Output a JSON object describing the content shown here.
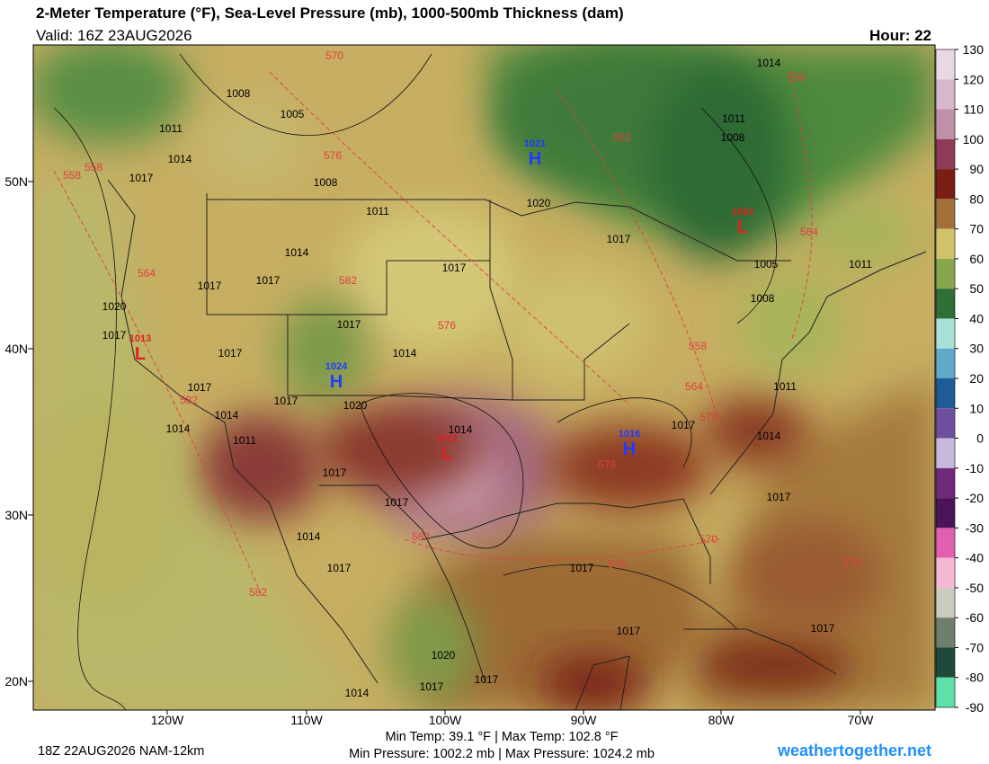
{
  "header": {
    "title": "2-Meter Temperature (°F), Sea-Level Pressure (mb), 1000-500mb Thickness (dam)",
    "valid": "Valid: 16Z 23AUG2026",
    "hour": "Hour: 22"
  },
  "colorbar": {
    "ticks": [
      130,
      120,
      110,
      100,
      90,
      80,
      70,
      60,
      50,
      40,
      30,
      20,
      10,
      0,
      -10,
      -20,
      -30,
      -40,
      -50,
      -60,
      -70,
      -80,
      -90
    ],
    "colors": [
      "#e8d8e3",
      "#d6b8cb",
      "#bf90a8",
      "#8e3b55",
      "#7a1d14",
      "#a4703a",
      "#cfc26a",
      "#86a74b",
      "#2f6e37",
      "#a9e0d6",
      "#5fa8c8",
      "#1f5a99",
      "#6e4f9e",
      "#c9b8de",
      "#6f2a7a",
      "#4b1456",
      "#e05fb1",
      "#f4b8d2",
      "#cbcbc0",
      "#6f7f6e",
      "#1f4a3a",
      "#5fe0a8"
    ]
  },
  "latitude_labels": [
    "50N",
    "40N",
    "30N",
    "20N"
  ],
  "longitude_labels": [
    "120W",
    "110W",
    "100W",
    "90W",
    "80W",
    "70W"
  ],
  "isobar_labels": [
    "1008",
    "1005",
    "1011",
    "1014",
    "1017",
    "1008",
    "1011",
    "1014",
    "1017",
    "1017",
    "1017",
    "1020",
    "1017",
    "1017",
    "1017",
    "1014",
    "1017",
    "1017",
    "1020",
    "1014",
    "1014",
    "1011",
    "1014",
    "1017",
    "1017",
    "1014",
    "1017",
    "1017",
    "1017",
    "1020",
    "1017",
    "1017",
    "1014",
    "1017",
    "1014",
    "1017",
    "1017",
    "1020",
    "1017",
    "1005",
    "1008",
    "1011",
    "1011",
    "1014",
    "1011",
    "1008"
  ],
  "thickness_labels": [
    "570",
    "576",
    "558",
    "558",
    "552",
    "558",
    "564",
    "582",
    "576",
    "564",
    "558",
    "564",
    "570",
    "576",
    "582",
    "582",
    "570",
    "576",
    "582",
    "570"
  ],
  "pressure_centers": [
    {
      "symbol": "H",
      "pressure": "1021"
    },
    {
      "symbol": "H",
      "pressure": "1024"
    },
    {
      "symbol": "H",
      "pressure": "1016"
    },
    {
      "symbol": "L",
      "pressure": "1013"
    },
    {
      "symbol": "L",
      "pressure": "1012"
    },
    {
      "symbol": "L",
      "pressure": "1002"
    }
  ],
  "footer": {
    "model_run": "18Z 22AUG2026 NAM-12km",
    "temperature_range": "Min Temp:  39.1 °F | Max Temp: 102.8 °F",
    "pressure_range": "Min Pressure: 1002.2 mb | Max Pressure: 1024.2 mb",
    "site": "weathertogether.net"
  }
}
